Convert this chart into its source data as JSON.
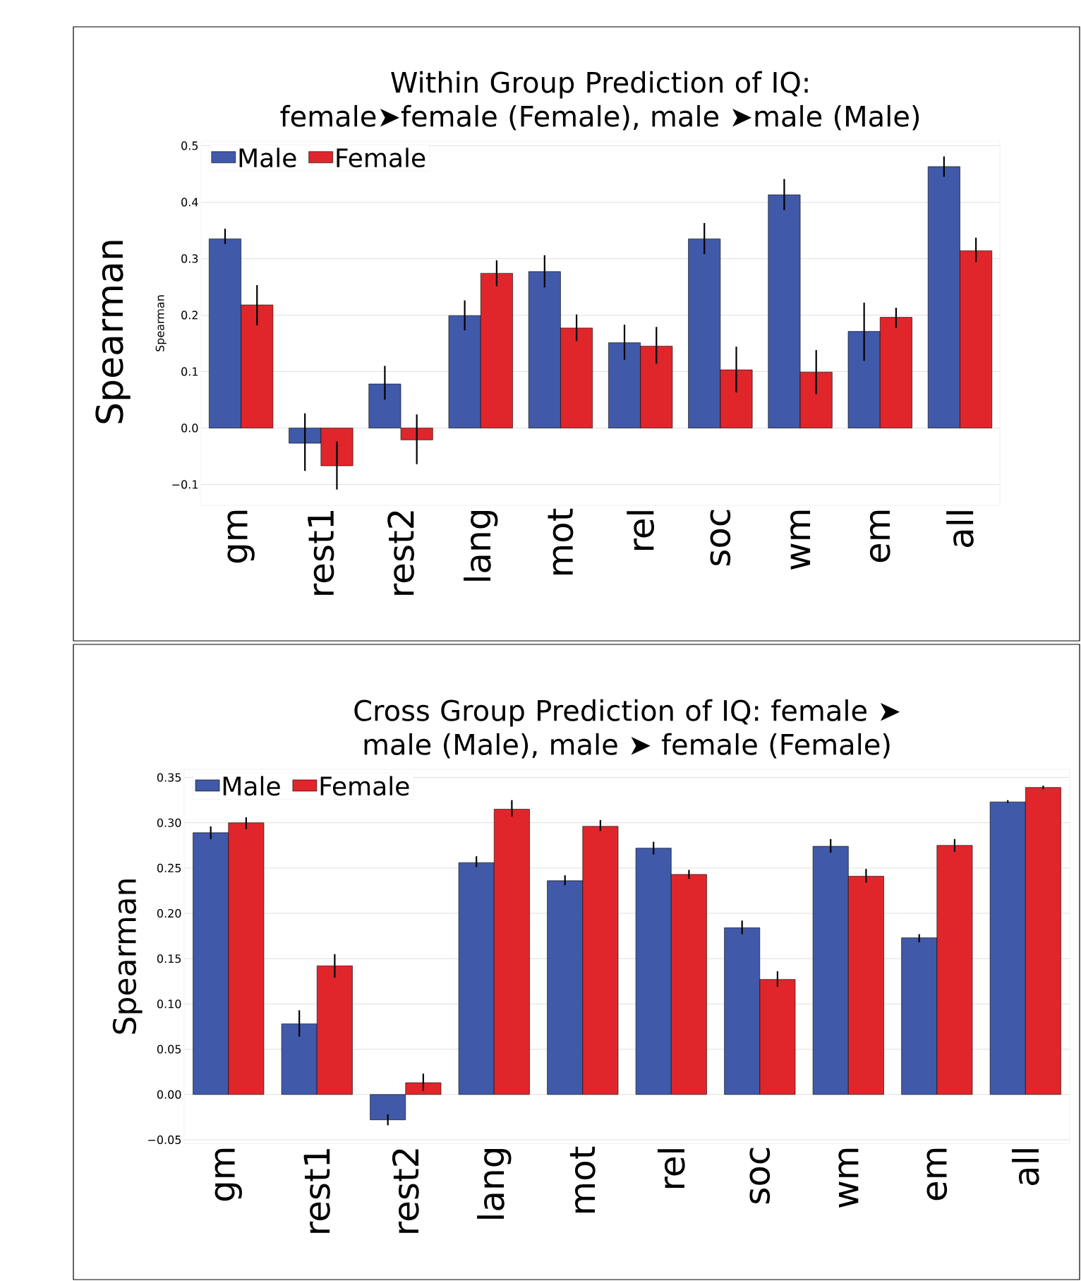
{
  "chart_data": [
    {
      "type": "bar",
      "title": "Within Group Prediction of IQ: female➤female (Female), male ➤male (Male)",
      "ylabel": "Spearman",
      "annotations": [
        "Spearman"
      ],
      "categories": [
        "gm",
        "rest1",
        "rest2",
        "lang",
        "mot",
        "rel",
        "soc",
        "wm",
        "em",
        "all"
      ],
      "series": [
        {
          "name": "Male",
          "color": "#4059a9",
          "values": [
            0.335,
            -0.027,
            0.078,
            0.199,
            0.277,
            0.151,
            0.335,
            0.413,
            0.171,
            0.463
          ],
          "errors": [
            [
              0.326,
              0.353
            ],
            [
              -0.076,
              0.026
            ],
            [
              0.05,
              0.11
            ],
            [
              0.173,
              0.226
            ],
            [
              0.249,
              0.306
            ],
            [
              0.121,
              0.183
            ],
            [
              0.308,
              0.363
            ],
            [
              0.386,
              0.441
            ],
            [
              0.119,
              0.222
            ],
            [
              0.445,
              0.481
            ]
          ]
        },
        {
          "name": "Female",
          "color": "#e0262b",
          "values": [
            0.218,
            -0.067,
            -0.021,
            0.274,
            0.177,
            0.145,
            0.103,
            0.099,
            0.196,
            0.314
          ],
          "errors": [
            [
              0.182,
              0.253
            ],
            [
              -0.109,
              -0.024
            ],
            [
              -0.064,
              0.024
            ],
            [
              0.251,
              0.297
            ],
            [
              0.154,
              0.201
            ],
            [
              0.114,
              0.179
            ],
            [
              0.063,
              0.144
            ],
            [
              0.06,
              0.138
            ],
            [
              0.177,
              0.213
            ],
            [
              0.294,
              0.337
            ]
          ]
        }
      ],
      "ylim": [
        -0.137,
        0.508
      ],
      "yticks": [
        {
          "value": -0.1,
          "label": "−0.1"
        },
        {
          "value": 0,
          "label": "0.0"
        },
        0.1,
        0.2,
        0.3,
        0.4,
        0.5
      ],
      "grid": "y",
      "legend": "top left"
    },
    {
      "type": "bar",
      "title": "Cross Group Prediction of IQ: female ➤ male (Male), male ➤ female (Female)",
      "ylabel": "Spearman",
      "categories": [
        "gm",
        "rest1",
        "rest2",
        "lang",
        "mot",
        "rel",
        "soc",
        "wm",
        "em",
        "all"
      ],
      "series": [
        {
          "name": "Male",
          "color": "#4059a9",
          "values": [
            0.289,
            0.078,
            -0.028,
            0.256,
            0.236,
            0.272,
            0.184,
            0.274,
            0.173,
            0.323
          ],
          "errors": [
            [
              0.282,
              0.296
            ],
            [
              0.064,
              0.093
            ],
            [
              -0.034,
              -0.022
            ],
            [
              0.251,
              0.263
            ],
            [
              0.231,
              0.242
            ],
            [
              0.265,
              0.279
            ],
            [
              0.177,
              0.192
            ],
            [
              0.267,
              0.282
            ],
            [
              0.168,
              0.177
            ],
            [
              0.322,
              0.325
            ]
          ]
        },
        {
          "name": "Female",
          "color": "#e0262b",
          "values": [
            0.3,
            0.142,
            0.013,
            0.315,
            0.296,
            0.243,
            0.127,
            0.241,
            0.275,
            0.339
          ],
          "errors": [
            [
              0.293,
              0.306
            ],
            [
              0.129,
              0.155
            ],
            [
              0.004,
              0.023
            ],
            [
              0.307,
              0.325
            ],
            [
              0.291,
              0.303
            ],
            [
              0.238,
              0.248
            ],
            [
              0.119,
              0.136
            ],
            [
              0.234,
              0.249
            ],
            [
              0.268,
              0.282
            ],
            [
              0.337,
              0.341
            ]
          ]
        }
      ],
      "ylim": [
        -0.054,
        0.359
      ],
      "yticks": [
        {
          "value": -0.05,
          "label": "−0.05"
        },
        {
          "value": 0,
          "label": "0.00"
        },
        0.05,
        {
          "value": 0.1,
          "label": "0.10"
        },
        0.15,
        {
          "value": 0.2,
          "label": "0.20"
        },
        0.25,
        {
          "value": 0.3,
          "label": "0.30"
        },
        0.35
      ],
      "grid": "y",
      "legend": "top left"
    }
  ]
}
